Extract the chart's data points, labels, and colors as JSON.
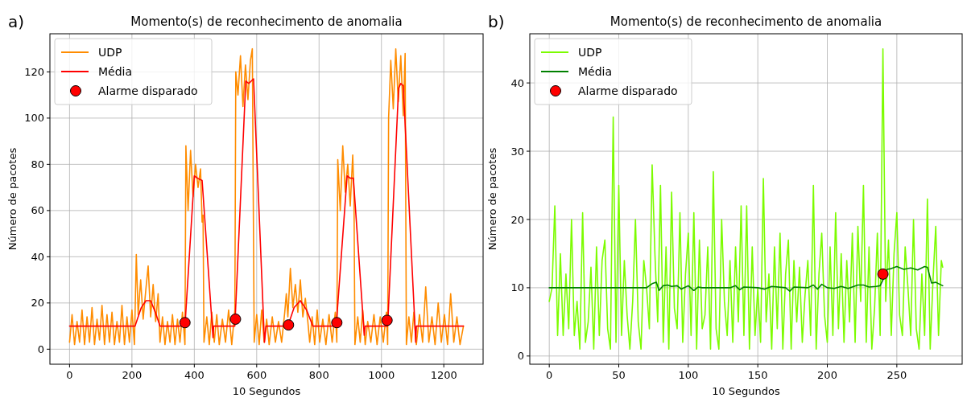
{
  "chart_data": [
    {
      "type": "line",
      "title": "Momento(s) de reconhecimento de anomalia",
      "xlabel": "10 Segundos",
      "ylabel": "Número de pacotes",
      "annotations": [
        "a)"
      ],
      "xlim": [
        -63,
        1326
      ],
      "ylim": [
        -6.5,
        136.5
      ],
      "xticks": [
        0,
        200,
        400,
        600,
        800,
        1000,
        1200
      ],
      "yticks": [
        0,
        20,
        40,
        60,
        80,
        100,
        120
      ],
      "grid": true,
      "legend": "top left",
      "series": [
        {
          "name": "UDP",
          "type": "line",
          "color": "#ff8c00",
          "x": [
            0,
            8,
            16,
            24,
            32,
            40,
            48,
            56,
            64,
            72,
            80,
            88,
            96,
            104,
            112,
            120,
            128,
            136,
            144,
            152,
            160,
            168,
            176,
            184,
            192,
            200,
            208,
            214,
            220,
            228,
            236,
            244,
            252,
            260,
            268,
            276,
            284,
            290,
            298,
            306,
            314,
            322,
            330,
            338,
            346,
            354,
            362,
            370,
            373,
            380,
            388,
            396,
            404,
            412,
            420,
            425,
            428,
            431,
            440,
            448,
            456,
            464,
            472,
            480,
            490,
            500,
            510,
            520,
            530,
            533,
            540,
            548,
            556,
            564,
            572,
            580,
            586,
            592,
            600,
            608,
            616,
            624,
            632,
            640,
            650,
            660,
            670,
            680,
            690,
            695,
            700,
            708,
            716,
            724,
            732,
            740,
            748,
            756,
            764,
            770,
            778,
            786,
            794,
            802,
            812,
            822,
            832,
            842,
            852,
            857,
            860,
            868,
            876,
            884,
            892,
            900,
            908,
            912,
            915,
            924,
            932,
            940,
            948,
            956,
            966,
            976,
            986,
            996,
            1006,
            1016,
            1020,
            1023,
            1030,
            1038,
            1046,
            1054,
            1062,
            1070,
            1076,
            1080,
            1088,
            1096,
            1104,
            1112,
            1122,
            1132,
            1142,
            1152,
            1162,
            1172,
            1182,
            1192,
            1202,
            1212,
            1222,
            1232,
            1242,
            1252,
            1263
          ],
          "values": [
            3,
            15,
            2,
            12,
            3,
            17,
            2,
            14,
            3,
            18,
            2,
            13,
            4,
            19,
            2,
            15,
            3,
            16,
            2,
            12,
            3,
            19,
            2,
            14,
            3,
            17,
            2,
            41,
            15,
            30,
            13,
            25,
            36,
            14,
            28,
            12,
            24,
            3,
            14,
            2,
            12,
            3,
            15,
            2,
            13,
            3,
            16,
            2,
            88,
            60,
            86,
            66,
            80,
            70,
            78,
            55,
            58,
            3,
            14,
            2,
            16,
            3,
            15,
            2,
            13,
            3,
            17,
            2,
            17,
            120,
            110,
            127,
            105,
            123,
            108,
            125,
            130,
            3,
            15,
            2,
            17,
            3,
            13,
            2,
            14,
            3,
            12,
            3,
            16,
            24,
            14,
            35,
            18,
            28,
            16,
            30,
            14,
            22,
            12,
            3,
            14,
            2,
            17,
            3,
            13,
            2,
            15,
            3,
            16,
            3,
            82,
            60,
            88,
            68,
            80,
            62,
            84,
            66,
            2,
            14,
            3,
            17,
            2,
            12,
            3,
            15,
            2,
            14,
            3,
            16,
            2,
            100,
            125,
            104,
            130,
            107,
            127,
            101,
            128,
            2,
            14,
            3,
            16,
            2,
            15,
            3,
            27,
            3,
            14,
            2,
            20,
            3,
            15,
            2,
            24,
            3,
            14,
            2,
            10
          ]
        },
        {
          "name": "Média",
          "type": "line",
          "color": "#ff0000",
          "x": [
            0,
            210,
            230,
            245,
            260,
            275,
            290,
            370,
            400,
            410,
            425,
            460,
            462,
            530,
            565,
            575,
            590,
            625,
            630,
            690,
            700,
            720,
            740,
            760,
            780,
            855,
            890,
            900,
            910,
            945,
            948,
            1020,
            1055,
            1062,
            1070,
            1110,
            1112,
            1263
          ],
          "values": [
            10,
            10,
            18,
            21,
            21,
            16,
            10,
            10,
            75,
            74,
            73,
            5,
            10,
            10,
            116,
            115,
            117,
            3,
            10,
            10,
            10,
            18,
            21,
            17,
            10,
            10,
            75,
            74,
            74,
            6,
            10,
            10,
            113,
            115,
            114,
            3,
            10,
            10
          ]
        },
        {
          "name": "Alarme disparado",
          "type": "scatter",
          "color": "#ff0000",
          "x": [
            370,
            532,
            702,
            857,
            1018
          ],
          "values": [
            11.5,
            13,
            10.5,
            11.5,
            12.5
          ]
        }
      ]
    },
    {
      "type": "line",
      "title": "Momento(s) de reconhecimento de anomalia",
      "xlabel": "10 Segundos",
      "ylabel": "Número de pacotes",
      "annotations": [
        "b)"
      ],
      "xlim": [
        -14,
        297
      ],
      "ylim": [
        -1.2,
        47.2
      ],
      "xticks": [
        0,
        50,
        100,
        150,
        200,
        250
      ],
      "yticks": [
        0,
        10,
        20,
        30,
        40
      ],
      "grid": true,
      "legend": "top left",
      "series": [
        {
          "name": "UDP",
          "type": "line",
          "color": "#7cfc00",
          "x": [
            0,
            2,
            4,
            6,
            8,
            10,
            12,
            14,
            16,
            18,
            20,
            22,
            24,
            26,
            28,
            30,
            32,
            34,
            36,
            38,
            40,
            42,
            44,
            46,
            48,
            50,
            52,
            54,
            56,
            58,
            60,
            62,
            64,
            66,
            68,
            70,
            72,
            74,
            76,
            78,
            80,
            82,
            84,
            86,
            88,
            90,
            92,
            94,
            96,
            98,
            100,
            102,
            104,
            106,
            108,
            110,
            112,
            114,
            116,
            118,
            120,
            122,
            124,
            126,
            128,
            130,
            132,
            134,
            136,
            138,
            140,
            142,
            144,
            146,
            148,
            150,
            152,
            154,
            156,
            158,
            160,
            162,
            164,
            166,
            168,
            170,
            172,
            174,
            176,
            178,
            180,
            182,
            184,
            186,
            188,
            190,
            192,
            194,
            196,
            198,
            200,
            202,
            204,
            206,
            208,
            210,
            212,
            214,
            216,
            218,
            220,
            222,
            224,
            226,
            228,
            230,
            232,
            234,
            236,
            238,
            240,
            242,
            244,
            246,
            248,
            250,
            252,
            254,
            256,
            258,
            260,
            262,
            264,
            266,
            268,
            270,
            272,
            274,
            276,
            278,
            280,
            282,
            283
          ],
          "values": [
            8,
            10,
            22,
            3,
            15,
            3,
            12,
            4,
            20,
            3,
            8,
            1,
            21,
            2,
            5,
            13,
            1,
            16,
            3,
            14,
            17,
            4,
            1,
            35,
            2,
            25,
            3,
            14,
            6,
            1,
            8,
            20,
            5,
            1,
            14,
            10,
            4,
            28,
            15,
            5,
            25,
            2,
            16,
            1,
            24,
            7,
            4,
            21,
            2,
            12,
            18,
            3,
            21,
            1,
            17,
            4,
            6,
            16,
            1,
            27,
            4,
            1,
            20,
            8,
            3,
            14,
            2,
            16,
            5,
            22,
            3,
            22,
            1,
            16,
            3,
            10,
            2,
            26,
            5,
            12,
            1,
            16,
            4,
            18,
            1,
            12,
            17,
            1,
            14,
            5,
            13,
            2,
            9,
            14,
            3,
            25,
            1,
            12,
            18,
            6,
            2,
            16,
            3,
            21,
            4,
            15,
            2,
            14,
            5,
            18,
            2,
            19,
            8,
            25,
            2,
            16,
            1,
            7,
            18,
            3,
            45,
            8,
            17,
            3,
            15,
            21,
            6,
            3,
            16,
            10,
            3,
            20,
            4,
            1,
            12,
            3,
            23,
            1,
            11,
            19,
            3,
            14,
            13
          ]
        },
        {
          "name": "Média",
          "type": "line",
          "color": "#008000",
          "x": [
            0,
            70,
            74,
            77,
            79,
            82,
            85,
            88,
            92,
            95,
            100,
            104,
            107,
            110,
            130,
            134,
            137,
            140,
            150,
            155,
            160,
            170,
            173,
            176,
            186,
            190,
            193,
            196,
            200,
            205,
            210,
            215,
            222,
            226,
            230,
            235,
            238,
            242,
            243,
            246,
            250,
            255,
            260,
            265,
            270,
            272,
            275,
            278,
            283
          ],
          "values": [
            10,
            10,
            10.6,
            10.8,
            9.6,
            10.3,
            10.4,
            10.2,
            10.3,
            9.8,
            10.3,
            9.6,
            10.1,
            10,
            10,
            10.3,
            9.7,
            10.1,
            10,
            9.8,
            10.2,
            10,
            9.5,
            10.1,
            10,
            10.4,
            9.8,
            10.5,
            10,
            9.9,
            10.2,
            9.9,
            10.4,
            10.4,
            10.1,
            10.2,
            10.3,
            12,
            12.7,
            12.8,
            13.1,
            12.7,
            12.9,
            12.6,
            13.1,
            13,
            10.7,
            10.8,
            10.3
          ]
        },
        {
          "name": "Alarme disparado",
          "type": "scatter",
          "color": "#ff0000",
          "x": [
            240
          ],
          "values": [
            12
          ]
        }
      ]
    }
  ]
}
